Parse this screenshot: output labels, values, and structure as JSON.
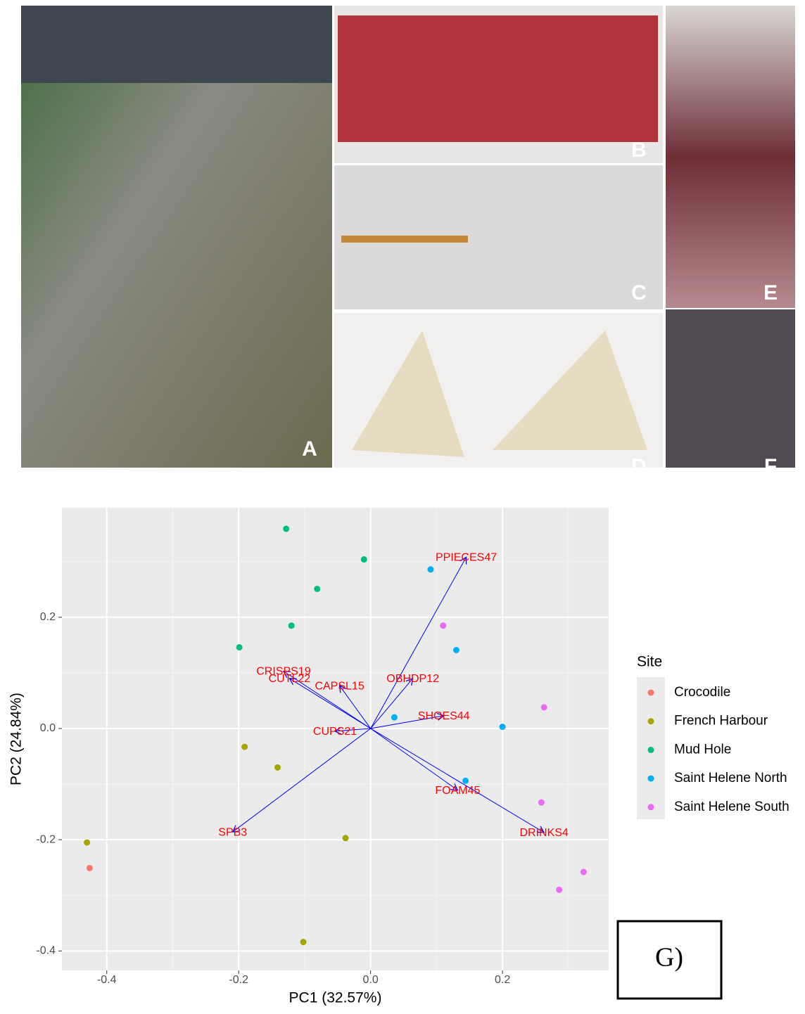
{
  "photo_labels": [
    "A",
    "B",
    "C",
    "D",
    "E",
    "F"
  ],
  "figure_label": "G)",
  "chart_data": {
    "type": "biplot",
    "x_label": "PC1 (32.57%)",
    "y_label": "PC2 (24.84%)",
    "legend_title": "Site",
    "xlim": [
      -0.468,
      0.361
    ],
    "ylim": [
      -0.435,
      0.397
    ],
    "xticks": [
      -0.4,
      -0.2,
      {
        "value": 0,
        "label": "0.0"
      },
      0.2
    ],
    "yticks": [
      -0.4,
      -0.2,
      {
        "value": 0,
        "label": "0.0"
      },
      0.2
    ],
    "grid": true,
    "series": [
      {
        "name": "Crocodile",
        "color": "#F8766D",
        "x": [
          -0.426
        ],
        "values": [
          -0.251
        ]
      },
      {
        "name": "French Harbour",
        "color": "#A3A500",
        "x": [
          -0.43,
          -0.191,
          -0.141,
          -0.038,
          -0.102
        ],
        "values": [
          -0.205,
          -0.033,
          -0.07,
          -0.197,
          -0.384
        ]
      },
      {
        "name": "Mud Hole",
        "color": "#00BF7D",
        "x": [
          -0.128,
          -0.01,
          -0.081,
          -0.12,
          -0.199
        ],
        "values": [
          0.359,
          0.304,
          0.251,
          0.185,
          0.146
        ]
      },
      {
        "name": "Saint Helene North",
        "color": "#00B0F6",
        "x": [
          0.091,
          0.13,
          0.036,
          0.2,
          0.144
        ],
        "values": [
          0.286,
          0.141,
          0.02,
          0.003,
          -0.094
        ]
      },
      {
        "name": "Saint Helene South",
        "color": "#E76BF3",
        "x": [
          0.11,
          0.263,
          0.259,
          0.323,
          0.286
        ],
        "values": [
          0.185,
          0.038,
          -0.133,
          -0.258,
          -0.29
        ]
      }
    ],
    "loadings_color": "#0000ff",
    "loadings": [
      {
        "name": "PPIECES47",
        "x": 0.145,
        "y": 0.308
      },
      {
        "name": "CRISPS19",
        "x": -0.132,
        "y": 0.103
      },
      {
        "name": "CUTL22",
        "x": -0.123,
        "y": 0.09
      },
      {
        "name": "CAPSL15",
        "x": -0.047,
        "y": 0.077
      },
      {
        "name": "OBHDP12",
        "x": 0.064,
        "y": 0.09
      },
      {
        "name": "SHOES44",
        "x": 0.111,
        "y": 0.023
      },
      {
        "name": "CUPS21",
        "x": -0.054,
        "y": -0.005
      },
      {
        "name": "FOAM45",
        "x": 0.132,
        "y": -0.111
      },
      {
        "name": "DRINKS4",
        "x": 0.263,
        "y": -0.187
      },
      {
        "name": "SPB3",
        "x": -0.209,
        "y": -0.186
      }
    ]
  }
}
